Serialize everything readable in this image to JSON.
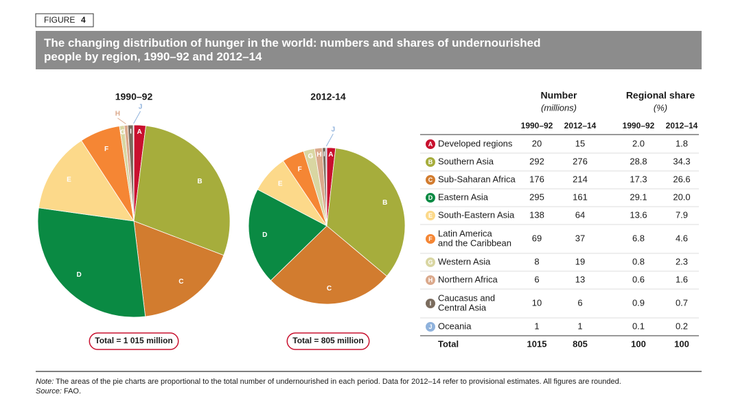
{
  "figure_label": "FIGURE",
  "figure_number": "4",
  "title": "The changing distribution of hunger in the world: numbers and shares of undernourished people by region, 1990–92 and 2012–14",
  "chart_data": [
    {
      "type": "pie",
      "title": "1990–92",
      "total_label": "Total = 1 015 million",
      "categories": [
        "A",
        "B",
        "C",
        "D",
        "E",
        "F",
        "G",
        "H",
        "I",
        "J"
      ],
      "values": [
        2.0,
        28.8,
        17.3,
        29.1,
        13.6,
        6.8,
        0.8,
        0.6,
        0.9,
        0.1
      ],
      "colors": [
        "#c8102e",
        "#a6ad3c",
        "#d27c2f",
        "#0a8a43",
        "#fcd98a",
        "#f58634",
        "#d9d6a2",
        "#dba98c",
        "#7b6c5e",
        "#8fb2dc"
      ]
    },
    {
      "type": "pie",
      "title": "2012-14",
      "total_label": "Total = 805 million",
      "categories": [
        "A",
        "B",
        "C",
        "D",
        "E",
        "F",
        "G",
        "H",
        "I",
        "J"
      ],
      "values": [
        1.8,
        34.3,
        26.6,
        20.0,
        7.9,
        4.6,
        2.3,
        1.6,
        0.7,
        0.2
      ],
      "colors": [
        "#c8102e",
        "#a6ad3c",
        "#d27c2f",
        "#0a8a43",
        "#fcd98a",
        "#f58634",
        "#d9d6a2",
        "#dba98c",
        "#7b6c5e",
        "#8fb2dc"
      ]
    }
  ],
  "table": {
    "number": "Number",
    "number_unit": "(millions)",
    "share": "Regional share",
    "share_unit": "(%)",
    "years": [
      "1990–92",
      "2012–14",
      "1990–92",
      "2012–14"
    ],
    "rows": [
      {
        "region": [
          "Developed regions"
        ],
        "cells": [
          "20",
          "15",
          "2.0",
          "1.8"
        ]
      },
      {
        "region": [
          "Southern Asia"
        ],
        "cells": [
          "292",
          "276",
          "28.8",
          "34.3"
        ]
      },
      {
        "region": [
          "Sub-Saharan Africa"
        ],
        "cells": [
          "176",
          "214",
          "17.3",
          "26.6"
        ]
      },
      {
        "region": [
          "Eastern Asia"
        ],
        "cells": [
          "295",
          "161",
          "29.1",
          "20.0"
        ]
      },
      {
        "region": [
          "South-Eastern Asia"
        ],
        "cells": [
          "138",
          "64",
          "13.6",
          "7.9"
        ]
      },
      {
        "region": [
          "Latin America",
          "and the Caribbean"
        ],
        "cells": [
          "69",
          "37",
          "6.8",
          "4.6"
        ]
      },
      {
        "region": [
          "Western Asia"
        ],
        "cells": [
          "8",
          "19",
          "0.8",
          "2.3"
        ]
      },
      {
        "region": [
          "Northern Africa"
        ],
        "cells": [
          "6",
          "13",
          "0.6",
          "1.6"
        ]
      },
      {
        "region": [
          "Caucasus and",
          "Central Asia"
        ],
        "cells": [
          "10",
          "6",
          "0.9",
          "0.7"
        ]
      },
      {
        "region": [
          "Oceania"
        ],
        "cells": [
          "1",
          "1",
          "0.1",
          "0.2"
        ]
      }
    ],
    "total": {
      "region": [
        "Total"
      ],
      "cells": [
        "1015",
        "805",
        "100",
        "100"
      ]
    }
  },
  "note_label": "Note:",
  "note_text": "The areas of the pie charts are proportional to the total number of undernourished in each period. Data for 2012–14 refer to provisional estimates. All figures are rounded.",
  "source_label": "Source:",
  "source_text": "FAO."
}
